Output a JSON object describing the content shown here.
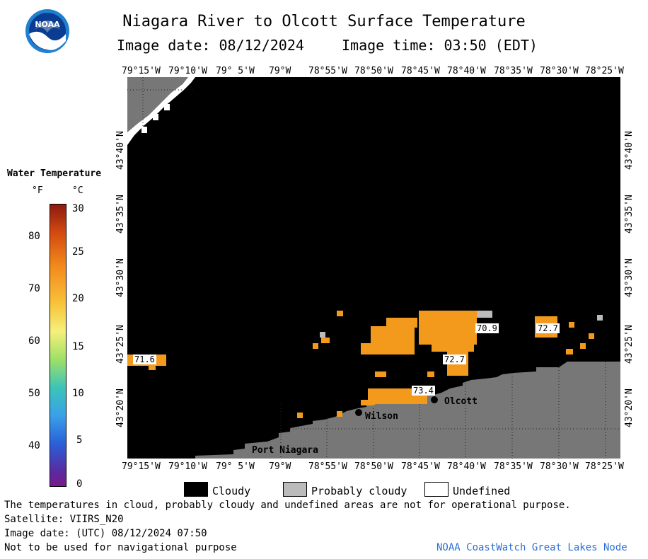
{
  "header": {
    "title": "Niagara River to Olcott Surface Temperature",
    "image_date_label": "Image date: 08/12/2024",
    "image_time_label": "Image time: 03:50 (EDT)",
    "logo_text": "NOAA"
  },
  "legend": {
    "title": "Water Temperature",
    "unit_f": "°F",
    "unit_c": "°C",
    "f_ticks": [
      "80",
      "70",
      "60",
      "50",
      "40"
    ],
    "c_ticks": [
      "30",
      "25",
      "20",
      "15",
      "10",
      "5",
      "0"
    ]
  },
  "axes": {
    "lon_labels": [
      "79°15'W",
      "79°10'W",
      "79° 5'W",
      "79°W",
      "78°55'W",
      "78°50'W",
      "78°45'W",
      "78°40'W",
      "78°35'W",
      "78°30'W",
      "78°25'W"
    ],
    "lat_labels": [
      "43°40'N",
      "43°35'N",
      "43°30'N",
      "43°25'N",
      "43°20'N"
    ]
  },
  "map": {
    "temps": [
      "71.6",
      "70.9",
      "72.7",
      "72.7",
      "73.4"
    ],
    "places": [
      "Port Niagara",
      "Wilson",
      "Olcott"
    ],
    "colors": {
      "cloudy": "#000000",
      "land": "#777777",
      "probably_cloudy": "#bbbbbb",
      "warm": "#f39a1c"
    }
  },
  "key": {
    "cloudy": "Cloudy",
    "probably_cloudy": "Probably cloudy",
    "undefined": "Undefined"
  },
  "footer": {
    "disclaimer": "The temperatures in cloud, probably cloudy and undefined areas are not for operational purpose.",
    "satellite": "Satellite: VIIRS_N20",
    "utc_date": "Image date: (UTC) 08/12/2024  07:50",
    "nav_warning": "Not to be used for navigational purpose",
    "credit": "NOAA CoastWatch Great Lakes Node"
  }
}
